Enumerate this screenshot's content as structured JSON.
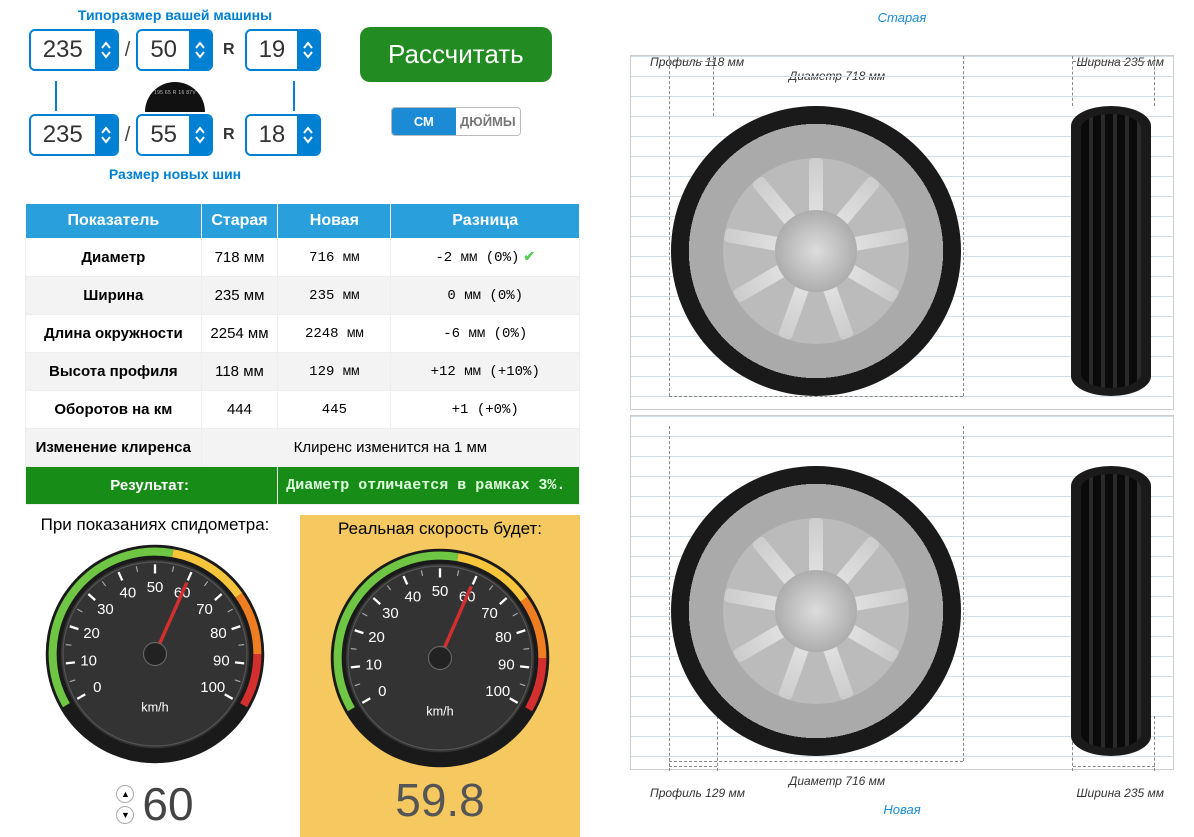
{
  "labels": {
    "old_size_title": "Типоразмер вашей машины",
    "new_size_title": "Размер новых шин",
    "calc_button": "Рассчитать",
    "unit_cm": "СМ",
    "unit_inch": "ДЮЙМЫ",
    "speedo_left_title": "При показаниях спидометра:",
    "speedo_right_title": "Реальная скорость будет:",
    "unit_kmh": "km/h",
    "r": "R",
    "old_tag": "Старая",
    "new_tag": "Новая"
  },
  "old_size": {
    "width": "235",
    "profile": "50",
    "rim": "19"
  },
  "new_size": {
    "width": "235",
    "profile": "55",
    "rim": "18"
  },
  "table": {
    "headers": [
      "Показатель",
      "Старая",
      "Новая",
      "Разница"
    ],
    "rows": [
      {
        "name": "Диаметр",
        "old": "718 мм",
        "new": "716 мм",
        "diff": "-2 мм (0%)",
        "ok": true
      },
      {
        "name": "Ширина",
        "old": "235 мм",
        "new": "235 мм",
        "diff": "0 мм (0%)",
        "ok": false
      },
      {
        "name": "Длина окружности",
        "old": "2254 мм",
        "new": "2248 мм",
        "diff": "-6 мм (0%)",
        "ok": false
      },
      {
        "name": "Высота профиля",
        "old": "118 мм",
        "new": "129 мм",
        "diff": "+12 мм (+10%)",
        "ok": false
      },
      {
        "name": "Оборотов на км",
        "old": "444",
        "new": "445",
        "diff": "+1 (+0%)",
        "ok": false
      }
    ],
    "clearance": {
      "name": "Изменение клиренса",
      "text": "Клиренс изменится на 1 мм"
    },
    "result": {
      "label": "Результат:",
      "text": "Диаметр отличается в рамках 3%."
    }
  },
  "speed": {
    "indicated": "60",
    "real": "59.8"
  },
  "gauge": {
    "ticks": [
      0,
      10,
      20,
      30,
      40,
      50,
      60,
      70,
      80,
      90,
      100
    ],
    "needle_angle_indicated": 36,
    "needle_angle_real": 35,
    "colors": {
      "green": "#6fc544",
      "yellow": "#f7c53c",
      "orange": "#ef7d22",
      "red": "#d32f2f",
      "face": "#333333",
      "rim": "#1a1a1a"
    }
  },
  "diagram": {
    "old": {
      "profile": "Профиль 118 мм",
      "diameter": "Диаметр 718 мм",
      "width": "Ширина 235 мм"
    },
    "new": {
      "profile": "Профиль 129 мм",
      "diameter": "Диаметр 716 мм",
      "width": "Ширина 235 мм"
    }
  },
  "colors": {
    "primary": "#0080d2",
    "header": "#29a0dc",
    "calc_btn": "#228b22",
    "highlight": "#f5c95f",
    "result_bg": "#178c17"
  }
}
